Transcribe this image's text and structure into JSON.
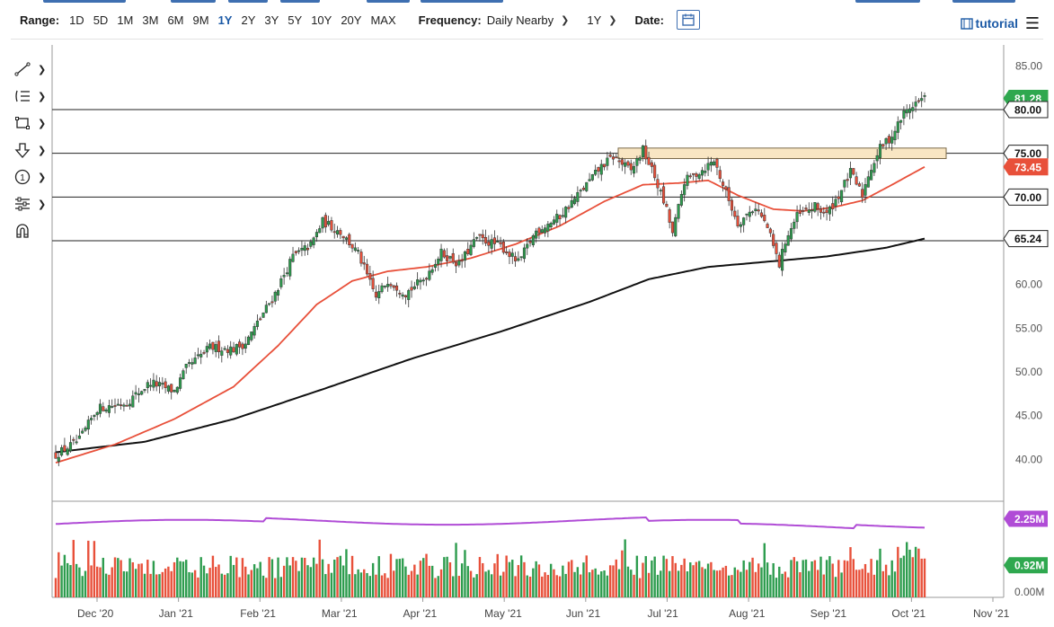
{
  "toolbar": {
    "range_label": "Range:",
    "ranges": [
      "1D",
      "5D",
      "1M",
      "3M",
      "6M",
      "9M",
      "1Y",
      "2Y",
      "3Y",
      "5Y",
      "10Y",
      "20Y",
      "MAX"
    ],
    "active_range": "1Y",
    "frequency_label": "Frequency:",
    "frequency_value": "Daily Nearby",
    "period_value": "1Y",
    "date_label": "Date:",
    "tutorial_label": "tutorial"
  },
  "icons": [
    "line-tool-icon",
    "fib-tool-icon",
    "rectangle-tool-icon",
    "arrow-down-tool-icon",
    "info-tool-icon",
    "settings-tool-icon",
    "magnet-tool-icon",
    "calendar-icon",
    "film-icon",
    "menu-icon"
  ],
  "colors": {
    "up_candle": "#2d9c4e",
    "down_candle": "#e8503a",
    "ma_fast": "#e8503a",
    "ma_slow": "#111111",
    "volume_ma": "#b04cd6",
    "price_badge": "#2fa84f",
    "zone_fill": "#f9e6c3",
    "zone_border": "#7a6a4a"
  },
  "chart_data": {
    "type": "candlestick",
    "x_tick_labels": [
      "Dec '20",
      "Jan '21",
      "Feb '21",
      "Mar '21",
      "Apr '21",
      "May '21",
      "Jun '21",
      "Jul '21",
      "Aug '21",
      "Sep '21",
      "Oct '21",
      "Nov '21"
    ],
    "y_tick_labels": [
      "85.00",
      "80.00",
      "75.00",
      "70.00",
      "65.00",
      "60.00",
      "55.00",
      "50.00",
      "45.00",
      "40.00"
    ],
    "y_range": [
      35.3,
      87.4
    ],
    "horizontal_lines": [
      80.0,
      75.0,
      70.0,
      65.0
    ],
    "resistance_zone": {
      "low": 74.4,
      "high": 75.6,
      "start": "Jun '21",
      "end": "Oct '21"
    },
    "price_badges": [
      {
        "label": "81.28",
        "value": 81.28,
        "color": "#2fa84f"
      },
      {
        "label": "80.00",
        "value": 80.0,
        "color": "#ffffff"
      },
      {
        "label": "75.00",
        "value": 75.0,
        "color": "#ffffff"
      },
      {
        "label": "73.45",
        "value": 73.45,
        "color": "#e8503a"
      },
      {
        "label": "70.00",
        "value": 70.0,
        "color": "#ffffff"
      },
      {
        "label": "65.24",
        "value": 65.24,
        "color": "#ffffff"
      }
    ],
    "price_anchors": [
      [
        0,
        40.5
      ],
      [
        8,
        42.2
      ],
      [
        14,
        45.8
      ],
      [
        24,
        46.5
      ],
      [
        32,
        48.8
      ],
      [
        40,
        47.8
      ],
      [
        44,
        50.4
      ],
      [
        52,
        52.8
      ],
      [
        60,
        52.6
      ],
      [
        64,
        53.3
      ],
      [
        74,
        59.0
      ],
      [
        80,
        63.2
      ],
      [
        86,
        64.5
      ],
      [
        90,
        67.2
      ],
      [
        96,
        66.0
      ],
      [
        102,
        63.5
      ],
      [
        108,
        58.5
      ],
      [
        112,
        60.5
      ],
      [
        118,
        59.0
      ],
      [
        124,
        60.6
      ],
      [
        130,
        63.6
      ],
      [
        136,
        62.3
      ],
      [
        142,
        65.3
      ],
      [
        150,
        64.4
      ],
      [
        156,
        62.5
      ],
      [
        162,
        66.1
      ],
      [
        170,
        67.8
      ],
      [
        178,
        71.0
      ],
      [
        184,
        73.5
      ],
      [
        188,
        74.6
      ],
      [
        194,
        73.0
      ],
      [
        198,
        75.4
      ],
      [
        202,
        72.3
      ],
      [
        206,
        68.5
      ],
      [
        208,
        65.8
      ],
      [
        212,
        71.8
      ],
      [
        218,
        73.1
      ],
      [
        222,
        74.2
      ],
      [
        226,
        70.5
      ],
      [
        230,
        67.0
      ],
      [
        236,
        68.9
      ],
      [
        240,
        66.5
      ],
      [
        244,
        62.2
      ],
      [
        246,
        65.0
      ],
      [
        250,
        67.8
      ],
      [
        256,
        68.9
      ],
      [
        260,
        68.0
      ],
      [
        264,
        70.2
      ],
      [
        268,
        72.8
      ],
      [
        272,
        70.2
      ],
      [
        274,
        72.6
      ],
      [
        278,
        75.6
      ],
      [
        282,
        77.0
      ],
      [
        286,
        79.6
      ],
      [
        290,
        80.8
      ],
      [
        293,
        81.28
      ]
    ],
    "ma_fast_anchors": [
      [
        0,
        39.6
      ],
      [
        20,
        41.7
      ],
      [
        40,
        44.6
      ],
      [
        60,
        48.3
      ],
      [
        75,
        53.0
      ],
      [
        88,
        57.7
      ],
      [
        100,
        60.4
      ],
      [
        112,
        61.5
      ],
      [
        125,
        62.0
      ],
      [
        140,
        63.0
      ],
      [
        155,
        64.6
      ],
      [
        170,
        66.7
      ],
      [
        185,
        69.5
      ],
      [
        198,
        71.4
      ],
      [
        210,
        71.6
      ],
      [
        220,
        71.9
      ],
      [
        230,
        70.2
      ],
      [
        242,
        68.6
      ],
      [
        252,
        68.4
      ],
      [
        262,
        68.8
      ],
      [
        272,
        69.6
      ],
      [
        282,
        71.4
      ],
      [
        293,
        73.45
      ]
    ],
    "ma_slow_anchors": [
      [
        0,
        40.8
      ],
      [
        30,
        42.0
      ],
      [
        60,
        44.6
      ],
      [
        90,
        48.0
      ],
      [
        120,
        51.5
      ],
      [
        150,
        54.6
      ],
      [
        180,
        58.0
      ],
      [
        200,
        60.6
      ],
      [
        220,
        62.0
      ],
      [
        240,
        62.6
      ],
      [
        260,
        63.2
      ],
      [
        280,
        64.2
      ],
      [
        293,
        65.24
      ]
    ],
    "volume": {
      "badges": [
        {
          "label": "2.25M",
          "value": 2.25,
          "color": "#b04cd6"
        },
        {
          "label": "0.92M",
          "value": 0.92,
          "color": "#2fa84f"
        },
        {
          "label": "0.00M",
          "value": 0.0,
          "color": "#ffffff"
        }
      ],
      "range_millions": [
        0,
        2.7
      ],
      "average_millions": 1.0
    }
  }
}
